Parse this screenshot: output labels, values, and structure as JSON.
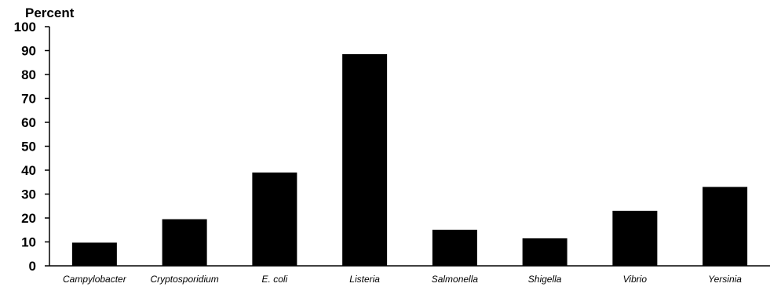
{
  "chart_data": {
    "type": "bar",
    "ylabel": "Percent",
    "xlabel": "",
    "title": "",
    "ylim": [
      0,
      100
    ],
    "yticks": [
      0,
      10,
      20,
      30,
      40,
      50,
      60,
      70,
      80,
      90,
      100
    ],
    "categories": [
      "Campylobacter",
      "Cryptosporidium",
      "E. coli",
      "Listeria",
      "Salmonella",
      "Shigella",
      "Vibrio",
      "Yersinia"
    ],
    "values": [
      9.7,
      19.5,
      39.0,
      88.5,
      15.1,
      11.5,
      23.0,
      33.0
    ],
    "bar_color": "#000000",
    "grid": false,
    "legend": "none"
  }
}
